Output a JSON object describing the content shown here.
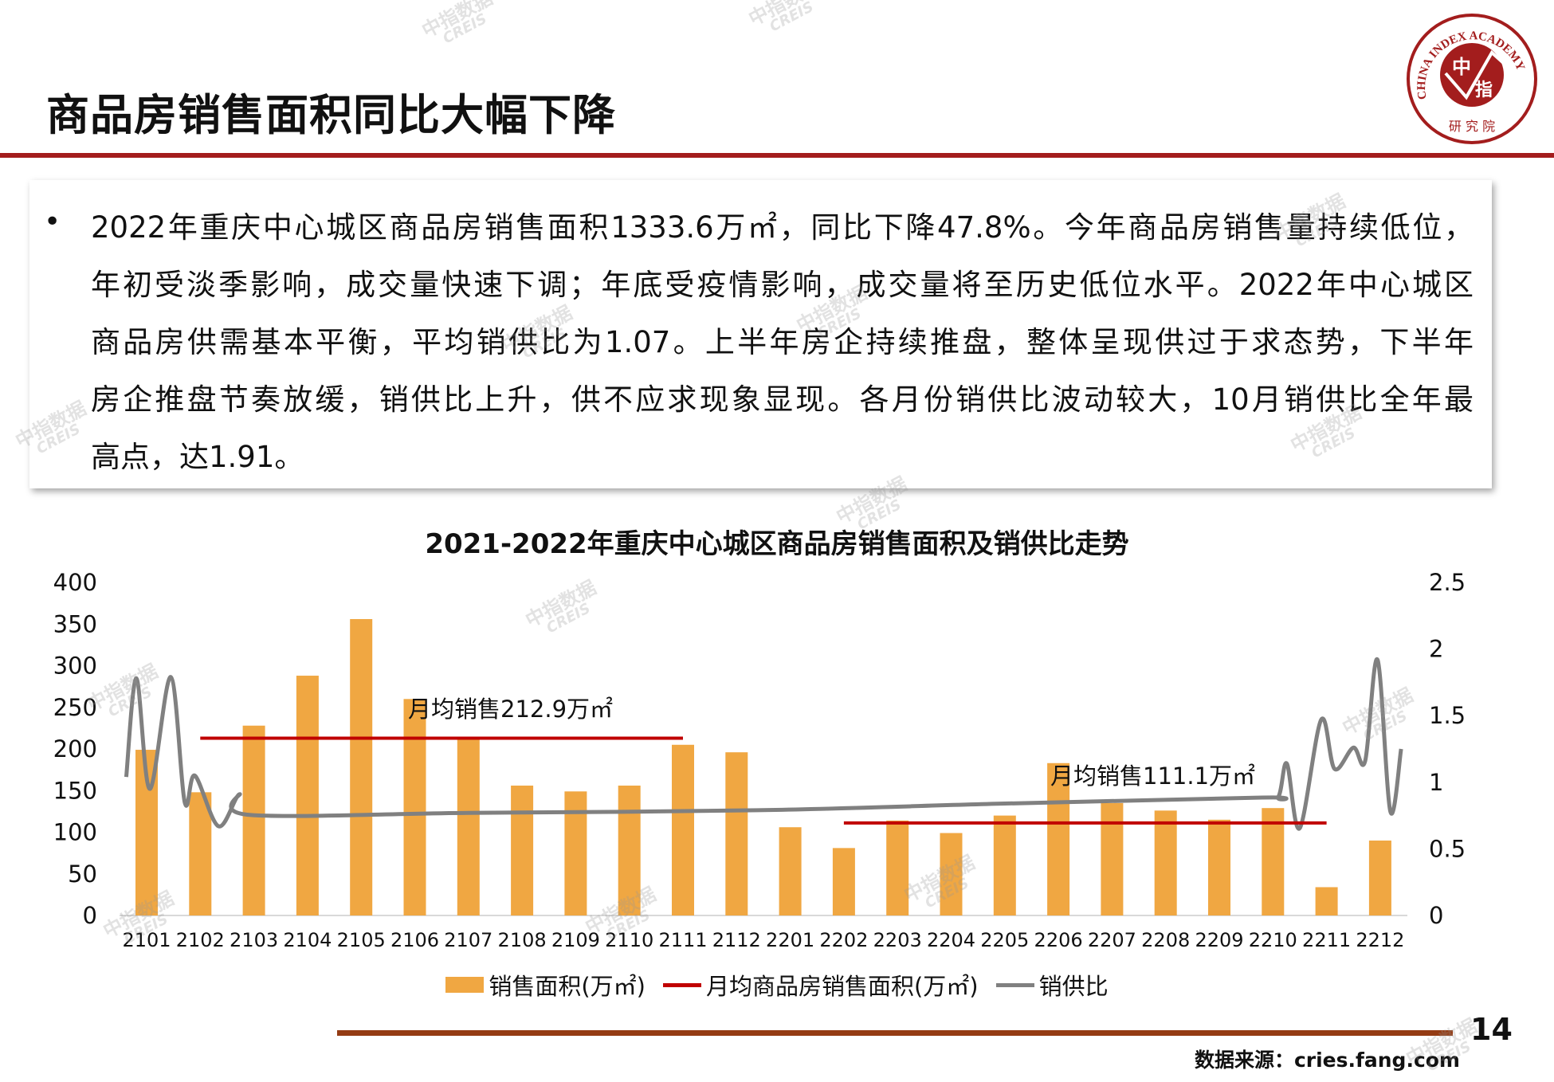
{
  "header": {
    "title": "商品房销售面积同比大幅下降",
    "logo_text": {
      "ring": "CHINA INDEX ACADEMY",
      "center_top": "中",
      "center_bottom": "指",
      "bottom": "研 究 院"
    }
  },
  "summary": {
    "bullet": "•",
    "lines": [
      "2022年重庆中心城区商品房销售面积1333.6万㎡，同比下降47.8%。今年商品房销售量持续低位，",
      "年初受淡季影响，成交量快速下调；年底受疫情影响，成交量将至历史低位水平。2022年中心城区",
      "商品房供需基本平衡，平均销供比为1.07。上半年房企持续推盘，整体呈现供过于求态势，下半年",
      "房企推盘节奏放缓，销供比上升，供不应求现象显现。各月份销供比波动较大，10月销供比全年最",
      "高点，达1.91。"
    ]
  },
  "watermark": {
    "cn": "中指数据",
    "en": "CREIS"
  },
  "chart_data": {
    "type": "bar",
    "title": "2021-2022年重庆中心城区商品房销售面积及销供比走势",
    "categories": [
      "2101",
      "2102",
      "2103",
      "2104",
      "2105",
      "2106",
      "2107",
      "2108",
      "2109",
      "2110",
      "2111",
      "2112",
      "2201",
      "2202",
      "2203",
      "2204",
      "2205",
      "2206",
      "2207",
      "2208",
      "2209",
      "2210",
      "2211",
      "2212"
    ],
    "series": [
      {
        "name": "销售面积(万㎡)",
        "type": "bar",
        "axis": "left",
        "color": "#f0a742",
        "values": [
          199,
          148,
          228,
          288,
          356,
          260,
          213,
          156,
          149,
          156,
          205,
          196,
          106,
          81,
          114,
          99,
          120,
          183,
          135,
          126,
          115,
          129,
          34,
          90
        ]
      },
      {
        "name": "月均商品房销售面积(万㎡)",
        "type": "hline",
        "axis": "left",
        "color": "#c00000",
        "segments": [
          {
            "from": "2102",
            "to": "2111",
            "value": 212.9,
            "label": "月均销售212.9万㎡"
          },
          {
            "from": "2202",
            "to": "2211",
            "value": 111.1,
            "label": "月均销售111.1万㎡"
          }
        ]
      },
      {
        "name": "销供比",
        "type": "line",
        "axis": "right",
        "color": "#808080",
        "points": [
          [
            -0.38,
            1.04
          ],
          [
            -0.19,
            1.78
          ],
          [
            0.06,
            0.95
          ],
          [
            0.45,
            1.79
          ],
          [
            0.71,
            0.85
          ],
          [
            0.9,
            1.05
          ],
          [
            1.34,
            0.67
          ],
          [
            1.73,
            0.91
          ],
          [
            1.92,
            0.755
          ],
          [
            6,
            0.77
          ],
          [
            11.39,
            0.79
          ],
          [
            16,
            0.84
          ],
          [
            20.8,
            0.885
          ],
          [
            21.1,
            0.89
          ],
          [
            21.26,
            1.14
          ],
          [
            21.5,
            0.655
          ],
          [
            21.9,
            1.47
          ],
          [
            22.15,
            1.1
          ],
          [
            22.5,
            1.26
          ],
          [
            22.72,
            1.16
          ],
          [
            22.95,
            1.92
          ],
          [
            23.19,
            0.78
          ],
          [
            23.39,
            1.25
          ]
        ]
      }
    ],
    "y_left": {
      "min": 0,
      "max": 400,
      "ticks": [
        "0",
        "50",
        "100",
        "150",
        "200",
        "250",
        "300",
        "350",
        "400"
      ]
    },
    "y_right": {
      "min": 0,
      "max": 2.5,
      "ticks": [
        "0",
        "0.5",
        "1",
        "1.5",
        "2",
        "2.5"
      ]
    },
    "legend": [
      "销售面积(万㎡)",
      "月均商品房销售面积(万㎡)",
      "销供比"
    ],
    "legend_position": "bottom",
    "grid": false
  },
  "footer": {
    "page_number": "14",
    "source": "数据来源：cries.fang.com"
  }
}
